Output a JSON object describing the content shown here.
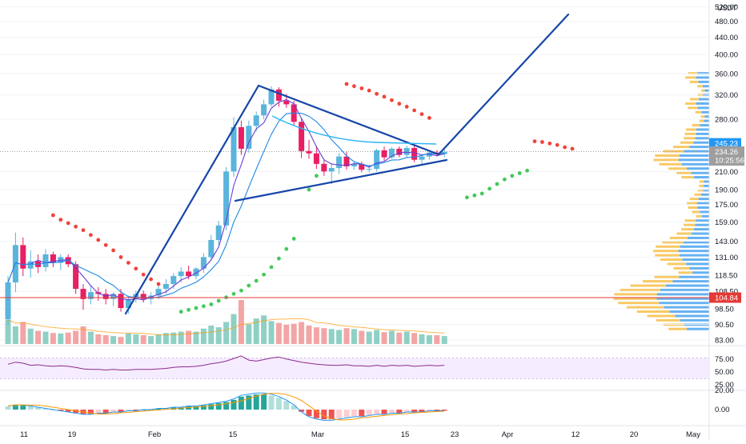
{
  "chart_data": {
    "type": "candlestick",
    "currency": "USDT",
    "x_ticks": [
      "11",
      "19",
      "Feb",
      "15",
      "Mar",
      "15",
      "23",
      "Apr",
      "12",
      "20",
      "May"
    ],
    "y_ticks": [
      "520.00",
      "480.00",
      "440.00",
      "400.00",
      "360.00",
      "320.00",
      "280.00",
      "245.23",
      "234.26",
      "210.00",
      "190.00",
      "175.00",
      "159.00",
      "143.00",
      "131.00",
      "118.50",
      "108.50",
      "104.84",
      "98.50",
      "90.50",
      "83.00"
    ],
    "price_tags": {
      "current": {
        "value": "234.26",
        "countdown": "10:25:56",
        "color": "#9e9e9e"
      },
      "upper": {
        "value": "245.23",
        "color": "#2196f3"
      },
      "support": {
        "value": "104.84",
        "color": "#e53935"
      }
    },
    "colors": {
      "up": "#5ab4dc",
      "down": "#e91e63",
      "sar_up": "#43c95a",
      "sar_down": "#f0433a",
      "trend": "#1646a8",
      "ma_fast": "#6a3fd4",
      "ma_slow": "#1e88e5",
      "profile_up": "#4aa3f0",
      "profile_down": "#f7c04a",
      "rsi": "#8e2a8e"
    },
    "candles": [
      {
        "o": 93,
        "h": 118,
        "l": 90,
        "c": 114
      },
      {
        "o": 114,
        "h": 150,
        "l": 108,
        "c": 140
      },
      {
        "o": 140,
        "h": 146,
        "l": 118,
        "c": 123
      },
      {
        "o": 123,
        "h": 136,
        "l": 117,
        "c": 128
      },
      {
        "o": 128,
        "h": 133,
        "l": 120,
        "c": 124
      },
      {
        "o": 124,
        "h": 137,
        "l": 121,
        "c": 133
      },
      {
        "o": 133,
        "h": 135,
        "l": 124,
        "c": 127
      },
      {
        "o": 127,
        "h": 133,
        "l": 122,
        "c": 131
      },
      {
        "o": 131,
        "h": 133,
        "l": 124,
        "c": 126
      },
      {
        "o": 126,
        "h": 128,
        "l": 107,
        "c": 110
      },
      {
        "o": 110,
        "h": 113,
        "l": 98,
        "c": 104
      },
      {
        "o": 104,
        "h": 112,
        "l": 101,
        "c": 108
      },
      {
        "o": 108,
        "h": 111,
        "l": 103,
        "c": 107
      },
      {
        "o": 107,
        "h": 110,
        "l": 101,
        "c": 104
      },
      {
        "o": 104,
        "h": 108,
        "l": 100,
        "c": 107
      },
      {
        "o": 107,
        "h": 110,
        "l": 97,
        "c": 99
      },
      {
        "o": 99,
        "h": 106,
        "l": 96,
        "c": 104
      },
      {
        "o": 104,
        "h": 109,
        "l": 102,
        "c": 107
      },
      {
        "o": 107,
        "h": 109,
        "l": 102,
        "c": 104
      },
      {
        "o": 104,
        "h": 108,
        "l": 101,
        "c": 106
      },
      {
        "o": 106,
        "h": 113,
        "l": 104,
        "c": 110
      },
      {
        "o": 110,
        "h": 116,
        "l": 107,
        "c": 113
      },
      {
        "o": 113,
        "h": 120,
        "l": 110,
        "c": 118
      },
      {
        "o": 118,
        "h": 124,
        "l": 114,
        "c": 121
      },
      {
        "o": 121,
        "h": 125,
        "l": 116,
        "c": 118
      },
      {
        "o": 118,
        "h": 124,
        "l": 116,
        "c": 123
      },
      {
        "o": 123,
        "h": 134,
        "l": 120,
        "c": 131
      },
      {
        "o": 131,
        "h": 148,
        "l": 129,
        "c": 144
      },
      {
        "o": 144,
        "h": 160,
        "l": 140,
        "c": 156
      },
      {
        "o": 156,
        "h": 215,
        "l": 152,
        "c": 210
      },
      {
        "o": 210,
        "h": 283,
        "l": 204,
        "c": 268
      },
      {
        "o": 268,
        "h": 278,
        "l": 230,
        "c": 238
      },
      {
        "o": 238,
        "h": 278,
        "l": 233,
        "c": 270
      },
      {
        "o": 270,
        "h": 292,
        "l": 262,
        "c": 286
      },
      {
        "o": 286,
        "h": 312,
        "l": 280,
        "c": 304
      },
      {
        "o": 304,
        "h": 336,
        "l": 300,
        "c": 330
      },
      {
        "o": 330,
        "h": 334,
        "l": 300,
        "c": 310
      },
      {
        "o": 310,
        "h": 322,
        "l": 298,
        "c": 304
      },
      {
        "o": 304,
        "h": 310,
        "l": 270,
        "c": 276
      },
      {
        "o": 276,
        "h": 282,
        "l": 226,
        "c": 235
      },
      {
        "o": 235,
        "h": 250,
        "l": 225,
        "c": 232
      },
      {
        "o": 232,
        "h": 242,
        "l": 213,
        "c": 219
      },
      {
        "o": 219,
        "h": 224,
        "l": 205,
        "c": 210
      },
      {
        "o": 210,
        "h": 220,
        "l": 196,
        "c": 214
      },
      {
        "o": 214,
        "h": 232,
        "l": 207,
        "c": 228
      },
      {
        "o": 228,
        "h": 234,
        "l": 212,
        "c": 216
      },
      {
        "o": 216,
        "h": 222,
        "l": 212,
        "c": 219
      },
      {
        "o": 219,
        "h": 222,
        "l": 209,
        "c": 212
      },
      {
        "o": 212,
        "h": 218,
        "l": 209,
        "c": 213
      },
      {
        "o": 213,
        "h": 238,
        "l": 210,
        "c": 236
      },
      {
        "o": 236,
        "h": 241,
        "l": 223,
        "c": 227
      },
      {
        "o": 227,
        "h": 240,
        "l": 225,
        "c": 238
      },
      {
        "o": 238,
        "h": 241,
        "l": 227,
        "c": 230
      },
      {
        "o": 230,
        "h": 242,
        "l": 227,
        "c": 239
      },
      {
        "o": 239,
        "h": 242,
        "l": 221,
        "c": 224
      },
      {
        "o": 224,
        "h": 230,
        "l": 219,
        "c": 228
      },
      {
        "o": 228,
        "h": 235,
        "l": 224,
        "c": 233
      },
      {
        "o": 233,
        "h": 236,
        "l": 228,
        "c": 231
      },
      {
        "o": 231,
        "h": 237,
        "l": 227,
        "c": 234
      }
    ],
    "volume": [
      55,
      40,
      50,
      35,
      30,
      28,
      25,
      24,
      26,
      30,
      40,
      28,
      22,
      20,
      18,
      16,
      24,
      22,
      20,
      18,
      22,
      25,
      26,
      28,
      30,
      28,
      35,
      42,
      38,
      50,
      68,
      100,
      45,
      58,
      65,
      52,
      48,
      44,
      46,
      50,
      42,
      38,
      36,
      34,
      32,
      36,
      34,
      30,
      28,
      32,
      27,
      30,
      26,
      28,
      25,
      22,
      20,
      20,
      18
    ],
    "sar": [
      {
        "i": 6,
        "v": 165
      },
      {
        "i": 7,
        "v": 161
      },
      {
        "i": 8,
        "v": 158
      },
      {
        "i": 9,
        "v": 155
      },
      {
        "i": 10,
        "v": 152
      },
      {
        "i": 11,
        "v": 148
      },
      {
        "i": 12,
        "v": 144
      },
      {
        "i": 13,
        "v": 140
      },
      {
        "i": 14,
        "v": 136
      },
      {
        "i": 15,
        "v": 131
      },
      {
        "i": 16,
        "v": 127
      },
      {
        "i": 17,
        "v": 123
      },
      {
        "i": 18,
        "v": 119
      },
      {
        "i": 19,
        "v": 116
      },
      {
        "i": 20,
        "v": 113
      },
      {
        "i": 23,
        "v": 97,
        "u": 1
      },
      {
        "i": 24,
        "v": 98,
        "u": 1
      },
      {
        "i": 25,
        "v": 99,
        "u": 1
      },
      {
        "i": 26,
        "v": 100,
        "u": 1
      },
      {
        "i": 27,
        "v": 101,
        "u": 1
      },
      {
        "i": 28,
        "v": 103,
        "u": 1
      },
      {
        "i": 29,
        "v": 105,
        "u": 1
      },
      {
        "i": 30,
        "v": 107,
        "u": 1
      },
      {
        "i": 31,
        "v": 109,
        "u": 1
      },
      {
        "i": 32,
        "v": 112,
        "u": 1
      },
      {
        "i": 33,
        "v": 115,
        "u": 1
      },
      {
        "i": 34,
        "v": 119,
        "u": 1
      },
      {
        "i": 35,
        "v": 124,
        "u": 1
      },
      {
        "i": 36,
        "v": 130,
        "u": 1
      },
      {
        "i": 37,
        "v": 137,
        "u": 1
      },
      {
        "i": 38,
        "v": 145,
        "u": 1
      },
      {
        "i": 40,
        "v": 190,
        "u": 1
      },
      {
        "i": 41,
        "v": 205,
        "u": 1
      },
      {
        "i": 45,
        "v": 340
      },
      {
        "i": 46,
        "v": 336
      },
      {
        "i": 47,
        "v": 332
      },
      {
        "i": 48,
        "v": 328
      },
      {
        "i": 49,
        "v": 322
      },
      {
        "i": 50,
        "v": 317
      },
      {
        "i": 51,
        "v": 311
      },
      {
        "i": 52,
        "v": 305
      },
      {
        "i": 53,
        "v": 300
      },
      {
        "i": 54,
        "v": 294
      },
      {
        "i": 55,
        "v": 288
      },
      {
        "i": 56,
        "v": 282
      },
      {
        "i": 61,
        "v": 182,
        "u": 1
      },
      {
        "i": 62,
        "v": 184,
        "u": 1
      },
      {
        "i": 63,
        "v": 186,
        "u": 1
      },
      {
        "i": 64,
        "v": 191,
        "u": 1
      },
      {
        "i": 65,
        "v": 196,
        "u": 1
      },
      {
        "i": 66,
        "v": 201,
        "u": 1
      },
      {
        "i": 67,
        "v": 205,
        "u": 1
      },
      {
        "i": 68,
        "v": 208,
        "u": 1
      },
      {
        "i": 69,
        "v": 211,
        "u": 1
      },
      {
        "i": 70,
        "v": 248
      },
      {
        "i": 71,
        "v": 247
      },
      {
        "i": 72,
        "v": 245
      },
      {
        "i": 73,
        "v": 243
      },
      {
        "i": 74,
        "v": 240
      },
      {
        "i": 75,
        "v": 238
      }
    ],
    "rsi": [
      58,
      62,
      60,
      56,
      57,
      55,
      54,
      55,
      54,
      52,
      49,
      48,
      48,
      47,
      48,
      47,
      47,
      48,
      48,
      48,
      49,
      50,
      52,
      53,
      53,
      54,
      56,
      59,
      61,
      64,
      69,
      74,
      66,
      64,
      67,
      70,
      72,
      68,
      65,
      62,
      60,
      58,
      57,
      56,
      56,
      57,
      55,
      55,
      54,
      56,
      54,
      56,
      55,
      56,
      54,
      55,
      56,
      55,
      56
    ],
    "macd": [
      3,
      4,
      4,
      3,
      2,
      1,
      0,
      -1,
      -2,
      -3,
      -4,
      -4,
      -3,
      -3,
      -2,
      -2,
      -1,
      -1,
      0,
      0,
      1,
      1,
      2,
      2,
      3,
      3,
      4,
      5,
      6,
      7,
      9,
      12,
      13,
      14,
      14,
      13,
      11,
      8,
      4,
      -2,
      -6,
      -8,
      -9,
      -9,
      -8,
      -7,
      -6,
      -6,
      -5,
      -4,
      -4,
      -3,
      -3,
      -2,
      -2,
      -2,
      -1,
      -1,
      -1
    ],
    "rsi_ticks": [
      "75.00",
      "50.00",
      "25.00"
    ],
    "macd_ticks": [
      "20.00",
      "0.00"
    ],
    "y_domain": [
      83,
      540
    ],
    "y_scale": "log"
  }
}
